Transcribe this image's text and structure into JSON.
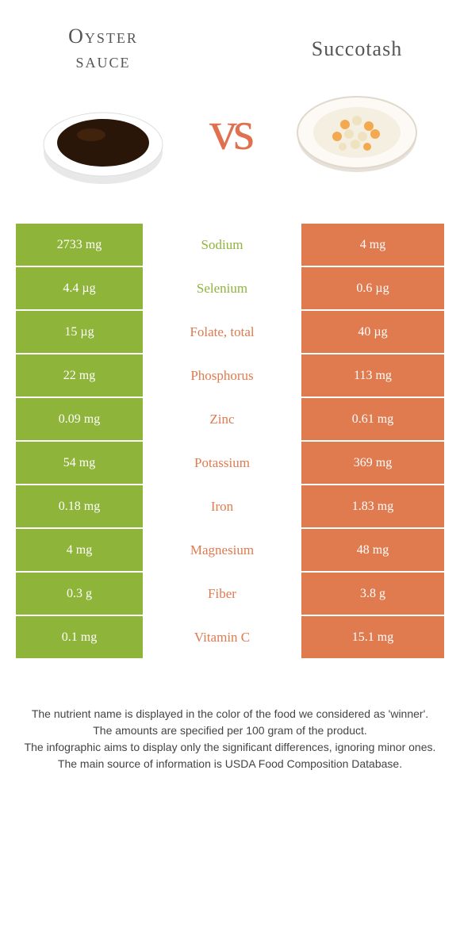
{
  "left_food": {
    "title": "Oyster\nsauce"
  },
  "right_food": {
    "title": "Succotash"
  },
  "vs_label": "vs",
  "colors": {
    "green": "#8fb43a",
    "orange": "#e07a4f",
    "mid_green_text": "#8fb43a",
    "mid_orange_text": "#e07a4f",
    "white": "#ffffff"
  },
  "table": {
    "rows": [
      {
        "left": "2733 mg",
        "mid": "Sodium",
        "right": "4 mg",
        "winner": "left"
      },
      {
        "left": "4.4 µg",
        "mid": "Selenium",
        "right": "0.6 µg",
        "winner": "left"
      },
      {
        "left": "15 µg",
        "mid": "Folate, total",
        "right": "40 µg",
        "winner": "right"
      },
      {
        "left": "22 mg",
        "mid": "Phosphorus",
        "right": "113 mg",
        "winner": "right"
      },
      {
        "left": "0.09 mg",
        "mid": "Zinc",
        "right": "0.61 mg",
        "winner": "right"
      },
      {
        "left": "54 mg",
        "mid": "Potassium",
        "right": "369 mg",
        "winner": "right"
      },
      {
        "left": "0.18 mg",
        "mid": "Iron",
        "right": "1.83 mg",
        "winner": "right"
      },
      {
        "left": "4 mg",
        "mid": "Magnesium",
        "right": "48 mg",
        "winner": "right"
      },
      {
        "left": "0.3 g",
        "mid": "Fiber",
        "right": "3.8 g",
        "winner": "right"
      },
      {
        "left": "0.1 mg",
        "mid": "Vitamin C",
        "right": "15.1 mg",
        "winner": "right"
      }
    ]
  },
  "footnote": [
    "The nutrient name is displayed in the color of the food we considered as 'winner'.",
    "The amounts are specified per 100 gram of the product.",
    "The infographic aims to display only the significant differences, ignoring minor ones.",
    "The main source of information is USDA Food Composition Database."
  ]
}
